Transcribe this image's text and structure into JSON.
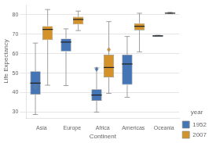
{
  "chart_data": {
    "type": "box",
    "xlabel": "Continent",
    "ylabel": "Life Expectancy",
    "categories": [
      "Asia",
      "Europe",
      "Africa",
      "Americas",
      "Oceania"
    ],
    "series": [
      {
        "name": "1952",
        "color": "#4575b4",
        "values": [
          {
            "q1": 39.0,
            "median": 44.9,
            "q3": 50.9,
            "whislo": 28.8,
            "whishi": 65.4,
            "fliers": [
              43.0
            ]
          },
          {
            "q1": 61.1,
            "median": 65.9,
            "q3": 67.7,
            "whislo": 43.6,
            "whishi": 72.7,
            "fliers": []
          },
          {
            "q1": 35.8,
            "median": 38.8,
            "q3": 41.7,
            "whislo": 30.0,
            "whishi": 52.7,
            "fliers": [
              52.0
            ]
          },
          {
            "q1": 44.0,
            "median": 54.7,
            "q3": 59.4,
            "whislo": 37.6,
            "whishi": 68.8,
            "fliers": []
          },
          {
            "q1": 68.6,
            "median": 69.1,
            "q3": 69.4,
            "whislo": 69.1,
            "whishi": 69.4,
            "fliers": []
          }
        ]
      },
      {
        "name": "2007",
        "color": "#d4922a",
        "values": [
          {
            "q1": 67.0,
            "median": 72.4,
            "q3": 74.1,
            "whislo": 43.8,
            "whishi": 82.6,
            "fliers": []
          },
          {
            "q1": 75.0,
            "median": 77.5,
            "q3": 78.9,
            "whislo": 71.8,
            "whishi": 81.8,
            "fliers": []
          },
          {
            "q1": 47.8,
            "median": 52.9,
            "q3": 59.4,
            "whislo": 39.6,
            "whishi": 76.4,
            "fliers": [
              62.0
            ]
          },
          {
            "q1": 72.0,
            "median": 74.0,
            "q3": 75.5,
            "whislo": 60.9,
            "whishi": 80.7,
            "fliers": []
          },
          {
            "q1": 80.7,
            "median": 80.7,
            "q3": 80.7,
            "whislo": 80.5,
            "whishi": 81.2,
            "fliers": []
          }
        ]
      }
    ],
    "ylim": [
      27,
      85
    ],
    "yticks": [
      30,
      40,
      50,
      60,
      70,
      80
    ],
    "grid": true,
    "legend": "lower right",
    "legend_title": "year"
  }
}
